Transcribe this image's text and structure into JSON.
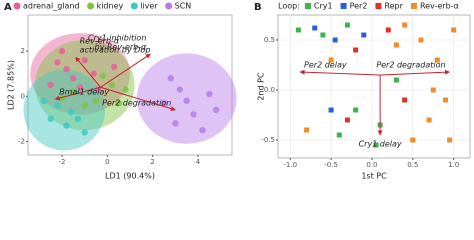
{
  "chart_data": [
    {
      "type": "scatter",
      "panel_label": "A",
      "x_label": "LD1 (90.4%)",
      "y_label": "LD2 (7.85%)",
      "xlim": [
        -3.5,
        5.5
      ],
      "ylim": [
        -2.6,
        3.6
      ],
      "xticks": [
        -2,
        0,
        2,
        4
      ],
      "yticks": [
        -2,
        0,
        2
      ],
      "grid": false,
      "marker": "circle",
      "series": [
        {
          "name": "adrenal_gland",
          "color": "#e7609a",
          "ellipse": {
            "cx": -1.2,
            "cy": 1.0,
            "rx": 2.2,
            "ry": 1.8
          },
          "x": [
            -2.2,
            -1.8,
            -1.5,
            -1.0,
            -0.6,
            -2.5,
            -0.4,
            -1.2,
            -2.0,
            0.3
          ],
          "values": [
            1.5,
            1.2,
            0.8,
            1.6,
            1.0,
            0.5,
            0.3,
            0.4,
            2.0,
            1.3
          ]
        },
        {
          "name": "kidney",
          "color": "#7fc241",
          "ellipse": {
            "cx": -1.0,
            "cy": 0.5,
            "rx": 2.2,
            "ry": 2.0
          },
          "x": [
            -1.5,
            -0.5,
            0.2,
            -1.0,
            0.5,
            -0.2,
            -2.0,
            0.8
          ],
          "values": [
            0.2,
            -0.2,
            0.5,
            -0.4,
            -0.3,
            0.9,
            -0.1,
            0.3
          ]
        },
        {
          "name": "liver",
          "color": "#40c8c0",
          "ellipse": {
            "cx": -1.9,
            "cy": -0.6,
            "rx": 1.8,
            "ry": 1.8
          },
          "x": [
            -2.5,
            -1.8,
            -2.2,
            -1.3,
            -2.8,
            -1.0,
            -1.6
          ],
          "values": [
            -1.0,
            -1.3,
            -0.4,
            -1.0,
            -0.2,
            -1.6,
            -0.7
          ]
        },
        {
          "name": "SCN",
          "color": "#b77be8",
          "ellipse": {
            "cx": 3.5,
            "cy": -0.1,
            "rx": 2.2,
            "ry": 2.0
          },
          "x": [
            2.5,
            3.2,
            3.8,
            4.5,
            3.0,
            4.2,
            2.8,
            4.8,
            3.5
          ],
          "values": [
            -0.3,
            0.3,
            -0.8,
            0.1,
            -1.2,
            -1.5,
            0.8,
            -0.6,
            -0.2
          ]
        }
      ],
      "arrow_origin": {
        "x": -0.3,
        "y": 0.4
      },
      "arrows": [
        {
          "lines": [
            "Rev-erb-α",
            "activation by Dbp"
          ],
          "x": -1.4,
          "y": 1.73
        },
        {
          "lines": [
            "Bmal1 delay"
          ],
          "x": -2.3,
          "y": -0.13
        },
        {
          "lines": [
            "Cry1 inhibition",
            "by Rev-erb-α"
          ],
          "x": 1.9,
          "y": 1.87
        },
        {
          "lines": [
            "Per2 degradation"
          ],
          "x": 3.0,
          "y": -0.6
        }
      ]
    },
    {
      "type": "scatter",
      "panel_label": "B",
      "x_label": "1st PC",
      "y_label": "2nd PC",
      "legend_title": "Loop:",
      "xlim": [
        -1.15,
        1.2
      ],
      "ylim": [
        -0.68,
        0.75
      ],
      "xticks": [
        {
          "value": -1,
          "label": "-1.0"
        },
        -0.5,
        {
          "value": 0,
          "label": "0.0"
        },
        0.5,
        {
          "value": 1,
          "label": "1.0"
        }
      ],
      "yticks": [
        -0.5,
        {
          "value": 0,
          "label": "0.0"
        },
        0.5
      ],
      "grid": true,
      "marker": "square",
      "series": [
        {
          "name": "Cry1",
          "color": "#3cb44b",
          "x": [
            -0.9,
            -0.6,
            -0.2,
            0.1,
            -0.4,
            0.3,
            -0.3,
            0.05
          ],
          "values": [
            0.6,
            0.55,
            -0.2,
            -0.35,
            -0.45,
            0.1,
            0.65,
            -0.55
          ]
        },
        {
          "name": "Per2",
          "color": "#2a5fd6",
          "x": [
            -0.7,
            -0.45,
            -0.1,
            -0.5
          ],
          "values": [
            0.62,
            0.5,
            0.55,
            -0.2
          ]
        },
        {
          "name": "Repr",
          "color": "#e0302a",
          "x": [
            -0.2,
            0.2,
            -0.3,
            0.4
          ],
          "values": [
            0.4,
            0.6,
            -0.3,
            -0.1
          ]
        },
        {
          "name": "Rev-erb-α",
          "color": "#f28c28",
          "x": [
            0.6,
            0.8,
            0.9,
            0.7,
            0.5,
            1.0,
            0.3,
            -0.5,
            -0.8,
            0.75,
            0.95,
            0.4
          ],
          "values": [
            0.5,
            0.3,
            -0.1,
            -0.3,
            -0.5,
            0.6,
            0.45,
            0.3,
            -0.4,
            0.0,
            -0.5,
            0.65
          ]
        }
      ],
      "arrow_origin": {
        "x": 0.1,
        "y": 0.15
      },
      "arrows": [
        {
          "lines": [
            "Per2 delay"
          ],
          "x": -0.88,
          "y": 0.18
        },
        {
          "lines": [
            "Per2 degradation"
          ],
          "x": 0.95,
          "y": 0.18
        },
        {
          "lines": [
            "Cry1 delay"
          ],
          "x": 0.1,
          "y": -0.45
        }
      ]
    }
  ]
}
